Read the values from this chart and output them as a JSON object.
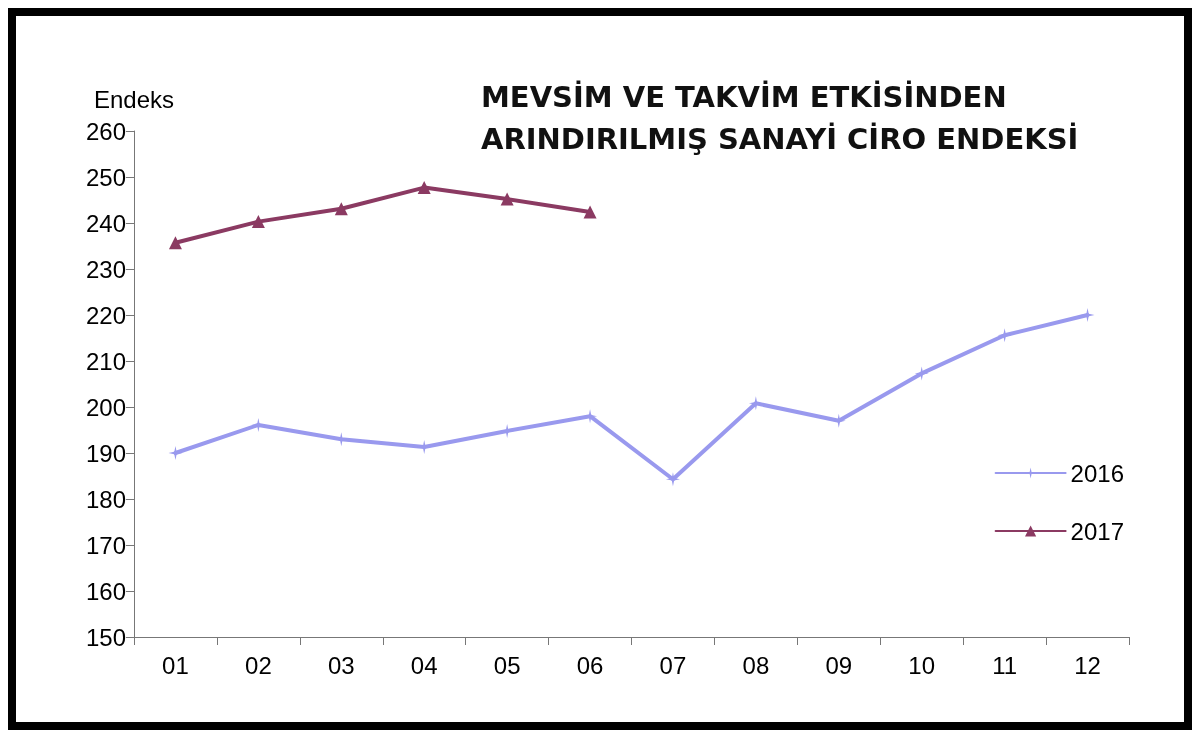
{
  "chart_data": {
    "type": "line",
    "title": "MEVSİM VE TAKVİM ETKİSİNDEN ARINDIRILMIŞ SANAYİ CİRO ENDEKSİ",
    "ylabel": "Endeks",
    "categories": [
      "01",
      "02",
      "03",
      "04",
      "05",
      "06",
      "07",
      "08",
      "09",
      "10",
      "11",
      "12"
    ],
    "series": [
      {
        "name": "2016",
        "color": "#9999ee",
        "marker": "star",
        "values": [
          190,
          196.1,
          193,
          191.3,
          194.8,
          198,
          184.3,
          200.8,
          197,
          207.3,
          215.6,
          220
        ]
      },
      {
        "name": "2017",
        "color": "#8b3a62",
        "marker": "triangle",
        "values": [
          235.7,
          240.3,
          243.1,
          247.7,
          245.2,
          242.4,
          null,
          null,
          null,
          null,
          null,
          null
        ]
      }
    ],
    "ylim": [
      150,
      260
    ],
    "yticks": [
      150,
      160,
      170,
      180,
      190,
      200,
      210,
      220,
      230,
      240,
      250,
      260
    ],
    "grid": false,
    "legend": "right"
  }
}
